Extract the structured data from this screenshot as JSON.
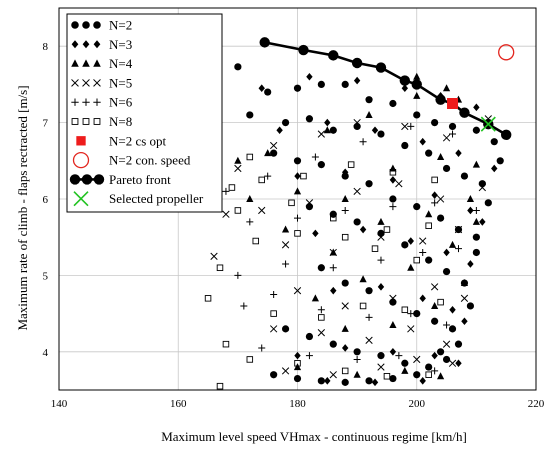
{
  "chart_data": {
    "type": "scatter",
    "xlabel": "Maximum level speed VHmax - continuous regime   [km/h]",
    "ylabel": "Maximum rate of climb - flaps rectracted   [m/s]",
    "xlim": [
      140,
      220
    ],
    "ylim": [
      3.5,
      8.5
    ],
    "xticks": [
      "140",
      "160",
      "180",
      "200",
      "220"
    ],
    "yticks": [
      "4",
      "5",
      "6",
      "7",
      "8"
    ],
    "grid": true,
    "legend_position": "top-left",
    "series": [
      {
        "name": "N=2",
        "marker": "circle",
        "color": "#000000",
        "points": [
          [
            170,
            7.73
          ],
          [
            175,
            7.4
          ],
          [
            180,
            7.45
          ],
          [
            184,
            7.5
          ],
          [
            188,
            7.5
          ],
          [
            192,
            7.3
          ],
          [
            196,
            7.25
          ],
          [
            200,
            7.1
          ],
          [
            203,
            7.0
          ],
          [
            206,
            6.95
          ],
          [
            210,
            6.9
          ],
          [
            213,
            6.75
          ],
          [
            172,
            7.1
          ],
          [
            178,
            7.0
          ],
          [
            182,
            7.05
          ],
          [
            186,
            6.9
          ],
          [
            190,
            6.95
          ],
          [
            194,
            6.85
          ],
          [
            198,
            6.7
          ],
          [
            202,
            6.6
          ],
          [
            205,
            6.4
          ],
          [
            208,
            6.3
          ],
          [
            211,
            6.2
          ],
          [
            214,
            6.5
          ],
          [
            176,
            6.6
          ],
          [
            180,
            6.5
          ],
          [
            184,
            6.45
          ],
          [
            188,
            6.3
          ],
          [
            192,
            6.2
          ],
          [
            196,
            6.0
          ],
          [
            200,
            5.9
          ],
          [
            204,
            5.75
          ],
          [
            207,
            5.6
          ],
          [
            210,
            5.5
          ],
          [
            212,
            5.95
          ],
          [
            182,
            5.9
          ],
          [
            186,
            5.8
          ],
          [
            190,
            5.7
          ],
          [
            194,
            5.55
          ],
          [
            198,
            5.4
          ],
          [
            202,
            5.2
          ],
          [
            205,
            5.05
          ],
          [
            208,
            4.9
          ],
          [
            210,
            5.3
          ],
          [
            184,
            5.1
          ],
          [
            188,
            4.9
          ],
          [
            192,
            4.8
          ],
          [
            196,
            4.65
          ],
          [
            200,
            4.5
          ],
          [
            203,
            4.4
          ],
          [
            206,
            4.3
          ],
          [
            209,
            4.6
          ],
          [
            178,
            4.3
          ],
          [
            182,
            4.2
          ],
          [
            186,
            4.1
          ],
          [
            190,
            4.0
          ],
          [
            194,
            3.95
          ],
          [
            198,
            3.85
          ],
          [
            202,
            3.8
          ],
          [
            205,
            3.9
          ],
          [
            176,
            3.7
          ],
          [
            180,
            3.65
          ],
          [
            184,
            3.62
          ],
          [
            188,
            3.6
          ],
          [
            192,
            3.62
          ],
          [
            196,
            3.65
          ],
          [
            200,
            3.7
          ],
          [
            204,
            4.0
          ],
          [
            207,
            4.1
          ]
        ]
      },
      {
        "name": "N=3",
        "marker": "diamond",
        "color": "#000000",
        "points": [
          [
            174,
            7.45
          ],
          [
            182,
            7.6
          ],
          [
            190,
            7.55
          ],
          [
            198,
            7.45
          ],
          [
            204,
            7.35
          ],
          [
            210,
            7.2
          ],
          [
            212,
            7.0
          ],
          [
            177,
            6.9
          ],
          [
            185,
            7.0
          ],
          [
            193,
            6.9
          ],
          [
            201,
            6.75
          ],
          [
            207,
            6.6
          ],
          [
            213,
            6.4
          ],
          [
            180,
            6.3
          ],
          [
            188,
            6.35
          ],
          [
            196,
            6.25
          ],
          [
            203,
            6.05
          ],
          [
            209,
            5.85
          ],
          [
            211,
            5.7
          ],
          [
            183,
            5.55
          ],
          [
            191,
            5.6
          ],
          [
            199,
            5.45
          ],
          [
            205,
            5.3
          ],
          [
            209,
            5.15
          ],
          [
            186,
            4.8
          ],
          [
            194,
            4.85
          ],
          [
            201,
            4.7
          ],
          [
            206,
            4.55
          ],
          [
            208,
            4.4
          ],
          [
            180,
            3.95
          ],
          [
            188,
            4.05
          ],
          [
            196,
            4.0
          ],
          [
            203,
            3.95
          ],
          [
            207,
            3.85
          ],
          [
            185,
            3.62
          ],
          [
            193,
            3.6
          ],
          [
            201,
            3.62
          ]
        ]
      },
      {
        "name": "N=4",
        "marker": "triangle",
        "color": "#000000",
        "points": [
          [
            170,
            6.5
          ],
          [
            175,
            6.6
          ],
          [
            185,
            6.9
          ],
          [
            192,
            7.1
          ],
          [
            200,
            7.35
          ],
          [
            207,
            7.3
          ],
          [
            172,
            6.0
          ],
          [
            180,
            6.1
          ],
          [
            188,
            6.0
          ],
          [
            196,
            6.4
          ],
          [
            204,
            6.55
          ],
          [
            210,
            6.45
          ],
          [
            178,
            5.6
          ],
          [
            186,
            5.3
          ],
          [
            194,
            5.7
          ],
          [
            202,
            5.8
          ],
          [
            209,
            6.0
          ],
          [
            183,
            4.7
          ],
          [
            191,
            4.95
          ],
          [
            199,
            5.1
          ],
          [
            206,
            5.4
          ],
          [
            188,
            4.3
          ],
          [
            196,
            4.35
          ],
          [
            203,
            4.6
          ],
          [
            208,
            4.9
          ],
          [
            180,
            3.8
          ],
          [
            190,
            3.7
          ],
          [
            198,
            3.75
          ],
          [
            204,
            3.68
          ],
          [
            210,
            5.7
          ],
          [
            200,
            7.6
          ],
          [
            205,
            7.45
          ]
        ]
      },
      {
        "name": "N=5",
        "marker": "x",
        "color": "#000000",
        "points": [
          [
            170,
            6.4
          ],
          [
            176,
            6.7
          ],
          [
            184,
            6.85
          ],
          [
            190,
            7.0
          ],
          [
            198,
            6.95
          ],
          [
            205,
            6.8
          ],
          [
            212,
            7.05
          ],
          [
            168,
            5.8
          ],
          [
            174,
            5.85
          ],
          [
            182,
            5.95
          ],
          [
            190,
            6.1
          ],
          [
            197,
            6.2
          ],
          [
            204,
            6.0
          ],
          [
            211,
            6.15
          ],
          [
            166,
            5.25
          ],
          [
            178,
            5.4
          ],
          [
            186,
            5.3
          ],
          [
            194,
            5.5
          ],
          [
            201,
            5.45
          ],
          [
            207,
            5.6
          ],
          [
            180,
            4.8
          ],
          [
            188,
            4.6
          ],
          [
            196,
            4.7
          ],
          [
            203,
            4.85
          ],
          [
            208,
            4.7
          ],
          [
            176,
            4.3
          ],
          [
            184,
            4.25
          ],
          [
            192,
            4.15
          ],
          [
            199,
            4.3
          ],
          [
            205,
            4.1
          ],
          [
            178,
            3.75
          ],
          [
            186,
            3.7
          ],
          [
            194,
            3.8
          ],
          [
            200,
            3.9
          ],
          [
            206,
            3.85
          ]
        ]
      },
      {
        "name": "N=6",
        "marker": "plus",
        "color": "#000000",
        "points": [
          [
            168,
            6.1
          ],
          [
            175,
            6.3
          ],
          [
            183,
            6.55
          ],
          [
            191,
            6.75
          ],
          [
            199,
            6.95
          ],
          [
            206,
            6.85
          ],
          [
            172,
            5.7
          ],
          [
            180,
            5.75
          ],
          [
            188,
            5.85
          ],
          [
            196,
            5.9
          ],
          [
            203,
            5.95
          ],
          [
            210,
            5.85
          ],
          [
            170,
            5.0
          ],
          [
            178,
            5.15
          ],
          [
            186,
            5.1
          ],
          [
            194,
            5.2
          ],
          [
            201,
            5.3
          ],
          [
            207,
            5.35
          ],
          [
            171,
            4.6
          ],
          [
            176,
            4.75
          ],
          [
            184,
            4.55
          ],
          [
            192,
            4.45
          ],
          [
            199,
            4.5
          ],
          [
            205,
            4.35
          ],
          [
            174,
            4.05
          ],
          [
            182,
            3.95
          ],
          [
            190,
            3.9
          ],
          [
            197,
            3.95
          ],
          [
            203,
            3.75
          ]
        ]
      },
      {
        "name": "N=8",
        "marker": "square",
        "color": "#000000",
        "points": [
          [
            169,
            6.15
          ],
          [
            174,
            6.25
          ],
          [
            181,
            6.3
          ],
          [
            189,
            6.45
          ],
          [
            196,
            6.35
          ],
          [
            203,
            6.25
          ],
          [
            165,
            4.7
          ],
          [
            167,
            5.1
          ],
          [
            173,
            5.45
          ],
          [
            180,
            5.55
          ],
          [
            188,
            5.5
          ],
          [
            195,
            5.6
          ],
          [
            202,
            5.65
          ],
          [
            168,
            4.1
          ],
          [
            176,
            4.5
          ],
          [
            184,
            4.45
          ],
          [
            191,
            4.6
          ],
          [
            198,
            4.55
          ],
          [
            204,
            4.65
          ],
          [
            170,
            5.85
          ],
          [
            179,
            5.95
          ],
          [
            186,
            5.75
          ],
          [
            193,
            5.35
          ],
          [
            200,
            5.2
          ],
          [
            172,
            3.9
          ],
          [
            180,
            3.85
          ],
          [
            188,
            3.75
          ],
          [
            195,
            3.68
          ],
          [
            202,
            3.7
          ],
          [
            167,
            3.55
          ],
          [
            166,
            6.3
          ],
          [
            172,
            6.55
          ]
        ]
      },
      {
        "name": "N=2 cs opt",
        "marker": "filled-square",
        "color": "#ee1c1c",
        "points": [
          [
            206,
            7.25
          ]
        ]
      },
      {
        "name": "N=2 con. speed",
        "marker": "open-circle",
        "color": "#e3261f",
        "points": [
          [
            215,
            7.92
          ]
        ]
      },
      {
        "name": "Pareto front",
        "marker": "circle-line",
        "color": "#000000",
        "points": [
          [
            174.5,
            8.05
          ],
          [
            181,
            7.95
          ],
          [
            186,
            7.88
          ],
          [
            190,
            7.78
          ],
          [
            194,
            7.72
          ],
          [
            198,
            7.55
          ],
          [
            200,
            7.5
          ],
          [
            204,
            7.3
          ],
          [
            206,
            7.25
          ],
          [
            208,
            7.13
          ],
          [
            212,
            6.98
          ],
          [
            215,
            6.84
          ]
        ]
      },
      {
        "name": "Selected propeller",
        "marker": "big-x",
        "color": "#22c322",
        "points": [
          [
            212,
            6.98
          ]
        ]
      }
    ]
  }
}
